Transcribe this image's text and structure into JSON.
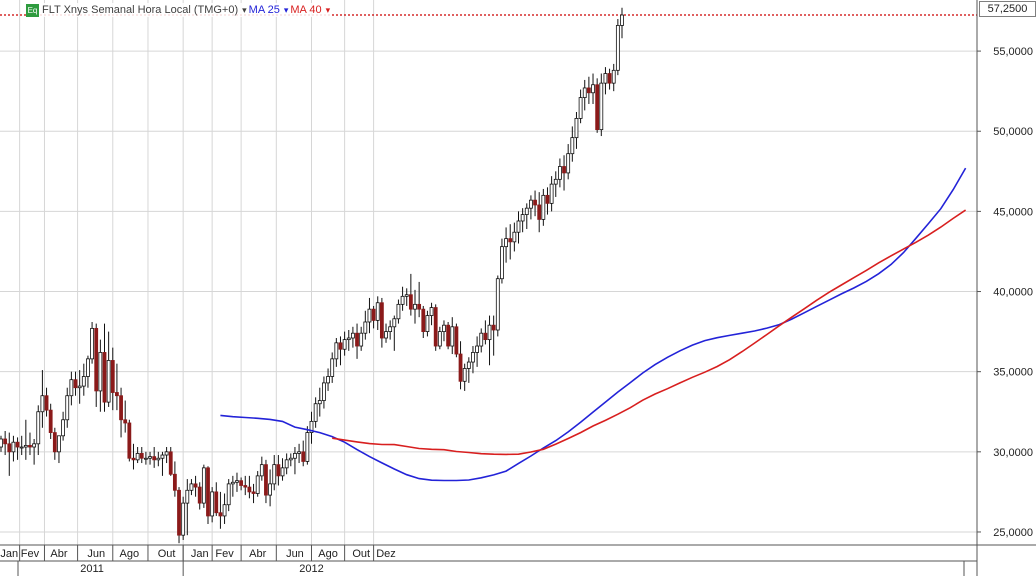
{
  "legend": {
    "icon": "Eq",
    "series_label": "FLT Xnys Semanal Hora Local (TMG+0)",
    "ma25_label": "MA 25",
    "ma40_label": "MA 40"
  },
  "colors": {
    "up": "#2e8b3d",
    "down": "#8b1a1a",
    "ma25": "#2323d8",
    "ma40": "#d81f1f",
    "grid": "#d6d6d6",
    "last_price_line": "#cc0000"
  },
  "chart_data": {
    "type": "candlestick",
    "frequency": "weekly",
    "ylim": [
      24000,
      58000
    ],
    "last_price": 57.25,
    "y_ticks": [
      "25,0000",
      "30,0000",
      "35,0000",
      "40,0000",
      "45,0000",
      "50,0000",
      "55,0000"
    ],
    "y_tick_values": [
      25000,
      30000,
      35000,
      40000,
      45000,
      50000,
      55000
    ],
    "last_price_label": "57,2500",
    "months": [
      "Jan",
      "Fev",
      "Abr",
      "Jun",
      "Ago",
      "Out",
      "Jan",
      "Fev",
      "Abr",
      "Jun",
      "Ago",
      "Out",
      "Dez"
    ],
    "month_week_index": [
      2,
      7,
      14,
      23,
      31,
      40,
      48,
      54,
      62,
      71,
      79,
      87,
      93
    ],
    "years": [
      "2011",
      "2012"
    ],
    "year_week_index": [
      22,
      75
    ],
    "candles": [
      [
        30300,
        31000,
        30000,
        30800
      ],
      [
        30800,
        31300,
        29800,
        30500
      ],
      [
        30500,
        31200,
        28500,
        30000
      ],
      [
        30000,
        31000,
        29400,
        30600
      ],
      [
        30600,
        30900,
        29500,
        30300
      ],
      [
        30300,
        31000,
        29800,
        30300
      ],
      [
        30300,
        32000,
        29500,
        30400
      ],
      [
        30400,
        31200,
        29800,
        30300
      ],
      [
        30300,
        30800,
        29200,
        30500
      ],
      [
        30500,
        32900,
        29800,
        32500
      ],
      [
        32500,
        35100,
        31500,
        33500
      ],
      [
        33500,
        34000,
        32200,
        32600
      ],
      [
        32600,
        33000,
        30800,
        31200
      ],
      [
        31200,
        31500,
        29500,
        30000
      ],
      [
        30000,
        31000,
        29300,
        31000
      ],
      [
        31000,
        32500,
        30700,
        32000
      ],
      [
        32000,
        34000,
        31500,
        33500
      ],
      [
        33500,
        35000,
        32900,
        34500
      ],
      [
        34500,
        35000,
        33500,
        34000
      ],
      [
        34000,
        35100,
        33000,
        34100
      ],
      [
        34100,
        35500,
        33500,
        34700
      ],
      [
        34700,
        36000,
        34000,
        35800
      ],
      [
        35800,
        38100,
        35500,
        37700
      ],
      [
        37700,
        38000,
        32800,
        33800
      ],
      [
        33800,
        37000,
        32500,
        36200
      ],
      [
        36200,
        38000,
        32500,
        33100
      ],
      [
        33100,
        37500,
        32800,
        35700
      ],
      [
        35700,
        36500,
        32600,
        33700
      ],
      [
        33700,
        35500,
        32600,
        33500
      ],
      [
        33500,
        34000,
        30900,
        32000
      ],
      [
        32000,
        33200,
        31200,
        31800
      ],
      [
        31800,
        32000,
        29400,
        29600
      ],
      [
        29600,
        30500,
        28900,
        29500
      ],
      [
        29500,
        30300,
        29300,
        29900
      ],
      [
        29900,
        30300,
        29300,
        29600
      ],
      [
        29600,
        30000,
        29200,
        29600
      ],
      [
        29600,
        30000,
        29200,
        29700
      ],
      [
        29700,
        30300,
        29000,
        29500
      ],
      [
        29500,
        30000,
        29100,
        29600
      ],
      [
        29600,
        30000,
        28500,
        29800
      ],
      [
        29800,
        30300,
        29300,
        30000
      ],
      [
        30000,
        30300,
        28500,
        28600
      ],
      [
        28600,
        29400,
        27200,
        27600
      ],
      [
        27600,
        27800,
        24300,
        24800
      ],
      [
        24800,
        27200,
        24500,
        26800
      ],
      [
        26800,
        28300,
        24800,
        27600
      ],
      [
        27600,
        28300,
        27300,
        28000
      ],
      [
        28000,
        28500,
        27200,
        27800
      ],
      [
        27800,
        28100,
        26400,
        26800
      ],
      [
        26800,
        29200,
        26500,
        29000
      ],
      [
        29000,
        29100,
        25500,
        26000
      ],
      [
        26000,
        27800,
        25600,
        27500
      ],
      [
        27500,
        28100,
        26000,
        26200
      ],
      [
        26200,
        27500,
        25200,
        26000
      ],
      [
        26000,
        27400,
        25500,
        26700
      ],
      [
        26700,
        28300,
        26300,
        28000
      ],
      [
        28000,
        28500,
        27200,
        28100
      ],
      [
        28100,
        28700,
        27500,
        28200
      ],
      [
        28200,
        28400,
        27600,
        27900
      ],
      [
        27900,
        28500,
        27300,
        27800
      ],
      [
        27800,
        28500,
        27100,
        27500
      ],
      [
        27500,
        28000,
        26800,
        27400
      ],
      [
        27400,
        28800,
        27200,
        28500
      ],
      [
        28500,
        29700,
        28200,
        29200
      ],
      [
        29200,
        29500,
        26800,
        27300
      ],
      [
        27300,
        28900,
        26600,
        28000
      ],
      [
        28000,
        29800,
        27600,
        29200
      ],
      [
        29200,
        29800,
        27900,
        28500
      ],
      [
        28500,
        29600,
        28200,
        29000
      ],
      [
        29000,
        29900,
        28600,
        29500
      ],
      [
        29500,
        29900,
        29100,
        29600
      ],
      [
        29600,
        30300,
        28600,
        29900
      ],
      [
        29900,
        30500,
        29300,
        30000
      ],
      [
        30000,
        30700,
        29100,
        29400
      ],
      [
        29400,
        31600,
        29200,
        31200
      ],
      [
        31200,
        32500,
        30500,
        31900
      ],
      [
        31900,
        33400,
        31500,
        33000
      ],
      [
        33000,
        34000,
        32200,
        33200
      ],
      [
        33200,
        34700,
        32700,
        34300
      ],
      [
        34300,
        35200,
        33800,
        34700
      ],
      [
        34700,
        36200,
        34300,
        35800
      ],
      [
        35800,
        37100,
        35300,
        36800
      ],
      [
        36800,
        37200,
        35400,
        36400
      ],
      [
        36400,
        37500,
        36000,
        37000
      ],
      [
        37000,
        37600,
        36300,
        37100
      ],
      [
        37100,
        37800,
        36500,
        37400
      ],
      [
        37400,
        38000,
        35800,
        36600
      ],
      [
        36600,
        37800,
        36300,
        37400
      ],
      [
        37400,
        38800,
        37000,
        38100
      ],
      [
        38100,
        39600,
        37400,
        38900
      ],
      [
        38900,
        39100,
        37700,
        38200
      ],
      [
        38200,
        39700,
        37600,
        39300
      ],
      [
        39300,
        39600,
        36500,
        37100
      ],
      [
        37100,
        38000,
        36800,
        37500
      ],
      [
        37500,
        38200,
        37000,
        37800
      ],
      [
        37800,
        38500,
        36300,
        38300
      ],
      [
        38300,
        39500,
        38000,
        39200
      ],
      [
        39200,
        40300,
        38800,
        39700
      ],
      [
        39700,
        40200,
        39100,
        39800
      ],
      [
        39800,
        41100,
        38500,
        38900
      ],
      [
        38900,
        40100,
        38000,
        39200
      ],
      [
        39200,
        40600,
        38400,
        38900
      ],
      [
        38900,
        39100,
        37100,
        37500
      ],
      [
        37500,
        38800,
        37200,
        38500
      ],
      [
        38500,
        39300,
        37900,
        39000
      ],
      [
        39000,
        39200,
        36300,
        36600
      ],
      [
        36600,
        37800,
        36400,
        37500
      ],
      [
        37500,
        38200,
        36900,
        37900
      ],
      [
        37900,
        38100,
        36400,
        36600
      ],
      [
        36600,
        38400,
        36100,
        37800
      ],
      [
        37800,
        38000,
        35900,
        36100
      ],
      [
        36100,
        36900,
        33900,
        34400
      ],
      [
        34400,
        35500,
        33800,
        35200
      ],
      [
        35200,
        35900,
        34300,
        35600
      ],
      [
        35600,
        36600,
        34900,
        36200
      ],
      [
        36200,
        37200,
        35300,
        36600
      ],
      [
        36600,
        37700,
        36200,
        37400
      ],
      [
        37400,
        38200,
        36700,
        37000
      ],
      [
        37000,
        38500,
        35400,
        37900
      ],
      [
        37900,
        38500,
        36000,
        37600
      ],
      [
        37600,
        41000,
        37200,
        40800
      ],
      [
        40800,
        43300,
        40500,
        42800
      ],
      [
        42800,
        44000,
        41800,
        43300
      ],
      [
        43300,
        44200,
        42000,
        43100
      ],
      [
        43100,
        44300,
        42500,
        43700
      ],
      [
        43700,
        45000,
        43000,
        44400
      ],
      [
        44400,
        45200,
        43700,
        44800
      ],
      [
        44800,
        45500,
        43900,
        45200
      ],
      [
        45200,
        46000,
        44500,
        45700
      ],
      [
        45700,
        46300,
        44700,
        45400
      ],
      [
        45400,
        46200,
        43700,
        44500
      ],
      [
        44500,
        46400,
        44100,
        46000
      ],
      [
        46000,
        46500,
        44800,
        45500
      ],
      [
        45500,
        47200,
        45000,
        46700
      ],
      [
        46700,
        47500,
        45900,
        47000
      ],
      [
        47000,
        48300,
        46500,
        47800
      ],
      [
        47800,
        48500,
        46300,
        47400
      ],
      [
        47400,
        49200,
        47000,
        48600
      ],
      [
        48600,
        50300,
        48100,
        49600
      ],
      [
        49600,
        51200,
        48900,
        50800
      ],
      [
        50800,
        52600,
        50500,
        52100
      ],
      [
        52100,
        53200,
        51300,
        52700
      ],
      [
        52700,
        53400,
        51700,
        52400
      ],
      [
        52400,
        53600,
        51700,
        52900
      ],
      [
        52900,
        53300,
        49900,
        50100
      ],
      [
        50100,
        53600,
        49700,
        53000
      ],
      [
        53000,
        54000,
        52300,
        53600
      ],
      [
        53600,
        53900,
        52600,
        53000
      ],
      [
        53000,
        54200,
        52500,
        53800
      ],
      [
        53800,
        57000,
        53500,
        56600
      ],
      [
        56600,
        57700,
        55800,
        57250
      ]
    ],
    "ma25": [
      [
        53,
        32270
      ],
      [
        56,
        32190
      ],
      [
        59,
        32140
      ],
      [
        62,
        32090
      ],
      [
        65,
        32020
      ],
      [
        68,
        31900
      ],
      [
        71,
        31540
      ],
      [
        74,
        31380
      ],
      [
        77,
        31200
      ],
      [
        80,
        30950
      ],
      [
        83,
        30600
      ],
      [
        86,
        30140
      ],
      [
        89,
        29700
      ],
      [
        92,
        29310
      ],
      [
        95,
        28930
      ],
      [
        98,
        28570
      ],
      [
        101,
        28330
      ],
      [
        104,
        28230
      ],
      [
        107,
        28210
      ],
      [
        110,
        28210
      ],
      [
        113,
        28240
      ],
      [
        116,
        28380
      ],
      [
        119,
        28560
      ],
      [
        122,
        28800
      ],
      [
        125,
        29280
      ],
      [
        128,
        29740
      ],
      [
        131,
        30240
      ],
      [
        134,
        30700
      ],
      [
        137,
        31240
      ],
      [
        140,
        31840
      ],
      [
        143,
        32480
      ],
      [
        146,
        33100
      ],
      [
        149,
        33730
      ],
      [
        152,
        34320
      ],
      [
        155,
        34920
      ],
      [
        158,
        35440
      ],
      [
        161,
        35900
      ],
      [
        164,
        36300
      ],
      [
        167,
        36660
      ],
      [
        170,
        36940
      ],
      [
        173,
        37120
      ],
      [
        176,
        37260
      ],
      [
        179,
        37400
      ],
      [
        182,
        37540
      ],
      [
        185,
        37720
      ],
      [
        188,
        37940
      ],
      [
        191,
        38280
      ],
      [
        194,
        38670
      ],
      [
        197,
        39070
      ],
      [
        200,
        39460
      ],
      [
        203,
        39850
      ],
      [
        206,
        40220
      ],
      [
        209,
        40630
      ],
      [
        212,
        41110
      ],
      [
        215,
        41690
      ],
      [
        218,
        42430
      ],
      [
        221,
        43320
      ],
      [
        224,
        44240
      ],
      [
        227,
        45170
      ],
      [
        230,
        46360
      ],
      [
        233,
        47700
      ]
    ],
    "ma40": [
      [
        80,
        30850
      ],
      [
        83,
        30730
      ],
      [
        86,
        30620
      ],
      [
        89,
        30510
      ],
      [
        92,
        30460
      ],
      [
        95,
        30450
      ],
      [
        98,
        30330
      ],
      [
        101,
        30210
      ],
      [
        104,
        30160
      ],
      [
        107,
        30130
      ],
      [
        110,
        30020
      ],
      [
        113,
        29960
      ],
      [
        116,
        29880
      ],
      [
        119,
        29850
      ],
      [
        122,
        29840
      ],
      [
        125,
        29850
      ],
      [
        128,
        29990
      ],
      [
        131,
        30160
      ],
      [
        134,
        30480
      ],
      [
        137,
        30830
      ],
      [
        140,
        31200
      ],
      [
        143,
        31610
      ],
      [
        146,
        31960
      ],
      [
        149,
        32350
      ],
      [
        152,
        32750
      ],
      [
        155,
        33220
      ],
      [
        158,
        33610
      ],
      [
        161,
        33940
      ],
      [
        164,
        34300
      ],
      [
        167,
        34650
      ],
      [
        170,
        34970
      ],
      [
        173,
        35320
      ],
      [
        176,
        35750
      ],
      [
        179,
        36250
      ],
      [
        182,
        36780
      ],
      [
        185,
        37320
      ],
      [
        188,
        37870
      ],
      [
        191,
        38400
      ],
      [
        194,
        38920
      ],
      [
        197,
        39450
      ],
      [
        200,
        39950
      ],
      [
        203,
        40410
      ],
      [
        206,
        40860
      ],
      [
        209,
        41320
      ],
      [
        212,
        41790
      ],
      [
        215,
        42230
      ],
      [
        218,
        42650
      ],
      [
        221,
        43070
      ],
      [
        224,
        43520
      ],
      [
        227,
        44020
      ],
      [
        230,
        44560
      ],
      [
        233,
        45080
      ]
    ]
  }
}
